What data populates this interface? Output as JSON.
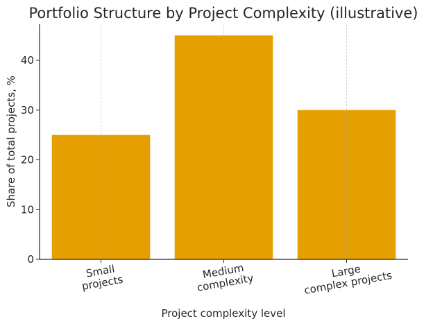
{
  "chart_data": {
    "type": "bar",
    "title": "Portfolio Structure by Project Complexity (illustrative)",
    "xlabel": "Project complexity level",
    "ylabel": "Share of total projects, %",
    "categories": [
      "Small\nprojects",
      "Medium\ncomplexity",
      "Large\ncomplex projects"
    ],
    "values": [
      25,
      45,
      30
    ],
    "ylim": [
      0,
      47.25
    ],
    "yticks": [
      0,
      10,
      20,
      30,
      40
    ],
    "grid": "x-axis dashed",
    "bar_color": "#E69F00"
  }
}
